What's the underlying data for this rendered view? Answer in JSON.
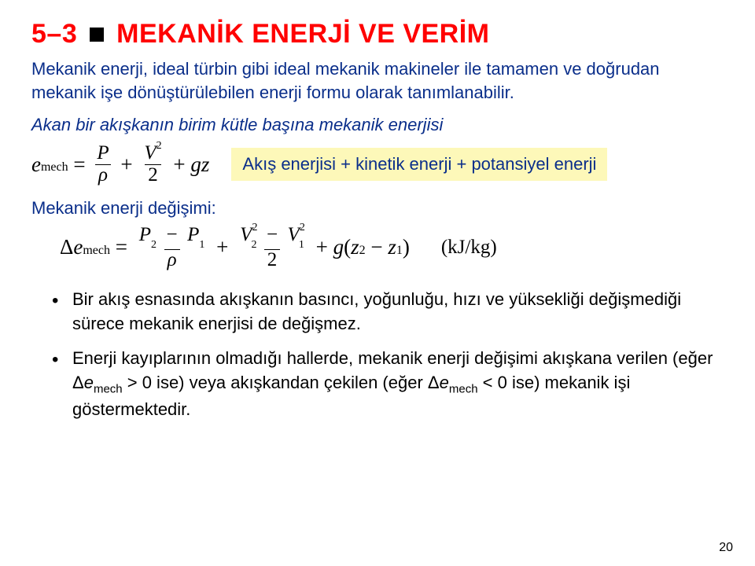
{
  "title": {
    "left": "5–3",
    "right": "MEKANİK ENERJİ VE VERİM",
    "color": "#ff0000",
    "fontsize_pt": 26
  },
  "intro": "Mekanik enerji, ideal türbin gibi ideal mekanik makineler ile tamamen ve doğrudan mekanik işe dönüştürülebilen enerji formu olarak tanımlanabilir.",
  "subhead1": "Akan bir akışkanın birim kütle başına mekanik enerjisi",
  "eq1": {
    "lhs_sym": "e",
    "lhs_sub": "mech",
    "term1": {
      "num": "P",
      "den": "ρ"
    },
    "term2": {
      "num_sym": "V",
      "num_sup": "2",
      "den": "2"
    },
    "term3": "gz"
  },
  "highlight": "Akış enerjisi + kinetik enerji + potansiyel enerji",
  "highlight_bg": "#fdf8b9",
  "subhead2": "Mekanik enerji değişimi:",
  "eq2": {
    "lhs_pre": "Δ",
    "lhs_sym": "e",
    "lhs_sub": "mech",
    "t1": {
      "num_l": "P",
      "num_l_sub": "2",
      "num_r": "P",
      "num_r_sub": "1",
      "den": "ρ"
    },
    "t2": {
      "num_l": "V",
      "num_l_sub": "2",
      "num_l_sup": "2",
      "num_r": "V",
      "num_r_sub": "1",
      "num_r_sup": "2",
      "den": "2"
    },
    "t3_g": "g",
    "t3_l": "z",
    "t3_l_sub": "2",
    "t3_r": "z",
    "t3_r_sub": "1",
    "unit": "(kJ/kg)"
  },
  "bullets": [
    {
      "text": "Bir akış esnasında akışkanın basıncı, yoğunluğu, hızı ve yüksekliği değişmediği sürece mekanik enerjisi de değişmez."
    },
    {
      "prefix": "Enerji kayıplarının olmadığı hallerde, mekanik enerji değişimi akışkana verilen (eğer Δ",
      "e1_sym": "e",
      "e1_sub": "mech",
      "mid1": " > 0 ise) veya akışkandan çekilen (eğer Δ",
      "e2_sym": "e",
      "e2_sub": "mech",
      "suffix": " < 0 ise) mekanik işi göstermektedir."
    }
  ],
  "page_number": "20",
  "colors": {
    "heading_blue": "#0a2e8a",
    "body_black": "#000000",
    "background": "#ffffff"
  },
  "typography": {
    "body_fontsize_pt": 17,
    "eq_fontfamily": "Times New Roman"
  }
}
